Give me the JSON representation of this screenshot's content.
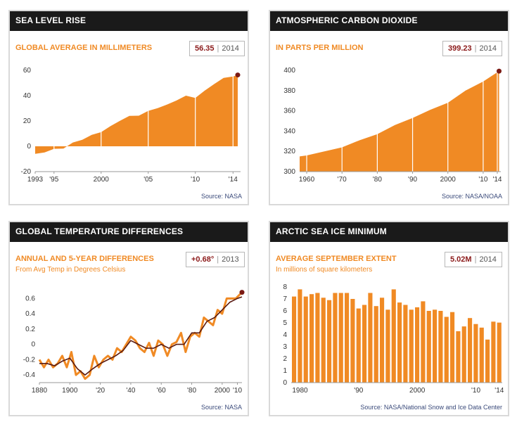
{
  "colors": {
    "orange": "#f08a24",
    "dark_red": "#7a1a14",
    "header_bg": "#1a1a1a",
    "line_dark": "#5a1a10"
  },
  "panels": {
    "sea": {
      "title": "SEA LEVEL RISE",
      "subtitle": "GLOBAL AVERAGE IN MILLIMETERS",
      "badge_value": "56.35",
      "badge_sep": "|",
      "badge_year": "2014",
      "source": "Source: NASA"
    },
    "co2": {
      "title": "ATMOSPHERIC CARBON DIOXIDE",
      "subtitle": "IN PARTS PER MILLION",
      "badge_value": "399.23",
      "badge_sep": "|",
      "badge_year": "2014",
      "source": "Source: NASA/NOAA"
    },
    "temp": {
      "title": "GLOBAL TEMPERATURE DIFFERENCES",
      "subtitle": "ANNUAL AND 5-YEAR DIFFERENCES",
      "subtitle2": "From Avg Temp in Degrees Celsius",
      "badge_value": "+0.68°",
      "badge_sep": "|",
      "badge_year": "2013",
      "source": "Source: NASA"
    },
    "ice": {
      "title": "ARCTIC SEA ICE MINIMUM",
      "subtitle": "AVERAGE SEPTEMBER EXTENT",
      "subtitle2": "In millions of square kilometers",
      "badge_value": "5.02M",
      "badge_sep": "|",
      "badge_year": "2014",
      "source": "Source: NASA/National Snow and Ice Data Center"
    }
  },
  "chart_data": [
    {
      "type": "area",
      "title": "SEA LEVEL RISE",
      "ylabel": "GLOBAL AVERAGE IN MILLIMETERS",
      "xlim": [
        1993,
        2014.8
      ],
      "ylim": [
        -20,
        60
      ],
      "yticks": [
        60,
        40,
        20,
        0,
        -20
      ],
      "xticks": [
        {
          "v": 1993,
          "label": "1993"
        },
        {
          "v": 1995,
          "label": "'95"
        },
        {
          "v": 2000,
          "label": "2000"
        },
        {
          "v": 2005,
          "label": "'05"
        },
        {
          "v": 2010,
          "label": "'10"
        },
        {
          "v": 2014,
          "label": "'14"
        }
      ],
      "x": [
        1993,
        1994,
        1995,
        1996,
        1997,
        1998,
        1999,
        2000,
        2001,
        2002,
        2003,
        2004,
        2005,
        2006,
        2007,
        2008,
        2009,
        2010,
        2011,
        2012,
        2013,
        2014,
        2014.5
      ],
      "y": [
        -6,
        -4,
        -2,
        -1,
        3,
        6,
        9,
        12,
        16,
        21,
        24,
        25,
        28,
        31,
        33,
        37,
        40,
        39,
        44,
        50,
        54,
        56,
        56.35
      ],
      "highlight": {
        "x": 2014.5,
        "y": 56.35
      }
    },
    {
      "type": "area",
      "title": "ATMOSPHERIC CARBON DIOXIDE",
      "ylabel": "IN PARTS PER MILLION",
      "xlim": [
        1958,
        2015
      ],
      "ylim": [
        300,
        400
      ],
      "yticks": [
        400,
        380,
        360,
        340,
        320,
        300
      ],
      "xticks": [
        {
          "v": 1960,
          "label": "1960"
        },
        {
          "v": 1970,
          "label": "'70"
        },
        {
          "v": 1980,
          "label": "'80"
        },
        {
          "v": 1990,
          "label": "'90"
        },
        {
          "v": 2000,
          "label": "2000"
        },
        {
          "v": 2010,
          "label": "'10"
        },
        {
          "v": 2014,
          "label": "'14"
        }
      ],
      "x": [
        1958,
        1960,
        1965,
        1970,
        1975,
        1980,
        1985,
        1990,
        1995,
        2000,
        2005,
        2010,
        2014.5
      ],
      "y": [
        315,
        317,
        320,
        325,
        331,
        338,
        346,
        354,
        361,
        369,
        380,
        390,
        399.23
      ],
      "highlight": {
        "x": 2014.5,
        "y": 399.23
      }
    },
    {
      "type": "line",
      "title": "GLOBAL TEMPERATURE DIFFERENCES",
      "ylabel": "From Avg Temp in Degrees Celsius",
      "xlim": [
        1880,
        2013
      ],
      "ylim": [
        -0.5,
        0.75
      ],
      "yticks": [
        0.6,
        0.4,
        0.2,
        0,
        -0.2,
        -0.4
      ],
      "xticks": [
        {
          "v": 1880,
          "label": "1880"
        },
        {
          "v": 1900,
          "label": "1900"
        },
        {
          "v": 1920,
          "label": "'20"
        },
        {
          "v": 1940,
          "label": "'40"
        },
        {
          "v": 1960,
          "label": "'60"
        },
        {
          "v": 1980,
          "label": "'80"
        },
        {
          "v": 2000,
          "label": "2000"
        },
        {
          "v": 2010,
          "label": "'10"
        }
      ],
      "series": [
        {
          "name": "Annual",
          "x": [
            1880,
            1883,
            1886,
            1889,
            1892,
            1895,
            1898,
            1901,
            1904,
            1907,
            1910,
            1913,
            1916,
            1919,
            1922,
            1925,
            1928,
            1931,
            1934,
            1937,
            1940,
            1943,
            1946,
            1949,
            1952,
            1955,
            1958,
            1961,
            1964,
            1967,
            1970,
            1973,
            1976,
            1979,
            1982,
            1985,
            1988,
            1991,
            1994,
            1997,
            2000,
            2003,
            2006,
            2009,
            2013
          ],
          "y": [
            -0.2,
            -0.3,
            -0.2,
            -0.3,
            -0.25,
            -0.15,
            -0.3,
            -0.1,
            -0.4,
            -0.35,
            -0.45,
            -0.4,
            -0.15,
            -0.3,
            -0.2,
            -0.15,
            -0.2,
            -0.05,
            -0.1,
            0.0,
            0.1,
            0.05,
            -0.05,
            -0.1,
            0.02,
            -0.15,
            0.05,
            0.0,
            -0.15,
            0.0,
            0.03,
            0.15,
            -0.1,
            0.1,
            0.15,
            0.1,
            0.35,
            0.3,
            0.25,
            0.45,
            0.4,
            0.6,
            0.6,
            0.6,
            0.68
          ]
        },
        {
          "name": "5-Year",
          "x": [
            1880,
            1885,
            1890,
            1895,
            1900,
            1905,
            1910,
            1915,
            1920,
            1925,
            1930,
            1935,
            1940,
            1945,
            1950,
            1955,
            1960,
            1965,
            1970,
            1975,
            1980,
            1985,
            1990,
            1995,
            2000,
            2005,
            2010,
            2013
          ],
          "y": [
            -0.25,
            -0.25,
            -0.28,
            -0.22,
            -0.18,
            -0.32,
            -0.4,
            -0.32,
            -0.25,
            -0.2,
            -0.15,
            -0.08,
            0.05,
            0.0,
            -0.05,
            -0.05,
            0.0,
            -0.05,
            0.0,
            0.0,
            0.15,
            0.15,
            0.3,
            0.35,
            0.45,
            0.55,
            0.6,
            0.62
          ]
        }
      ],
      "highlight": {
        "x": 2013,
        "y": 0.68
      }
    },
    {
      "type": "bar",
      "title": "ARCTIC SEA ICE MINIMUM",
      "ylabel": "In millions of square kilometers",
      "xlim": [
        1979,
        2015
      ],
      "ylim": [
        0,
        8
      ],
      "yticks": [
        8,
        7,
        6,
        5,
        4,
        3,
        2,
        1,
        0
      ],
      "xticks": [
        {
          "v": 1980,
          "label": "1980"
        },
        {
          "v": 1990,
          "label": "'90"
        },
        {
          "v": 2000,
          "label": "2000"
        },
        {
          "v": 2010,
          "label": "'10"
        },
        {
          "v": 2014,
          "label": "'14"
        }
      ],
      "categories": [
        1979,
        1980,
        1981,
        1982,
        1983,
        1984,
        1985,
        1986,
        1987,
        1988,
        1989,
        1990,
        1991,
        1992,
        1993,
        1994,
        1995,
        1996,
        1997,
        1998,
        1999,
        2000,
        2001,
        2002,
        2003,
        2004,
        2005,
        2006,
        2007,
        2008,
        2009,
        2010,
        2011,
        2012,
        2013,
        2014
      ],
      "values": [
        7.2,
        7.8,
        7.2,
        7.4,
        7.5,
        7.1,
        6.9,
        7.5,
        7.5,
        7.5,
        7.0,
        6.2,
        6.5,
        7.5,
        6.4,
        7.1,
        6.1,
        7.8,
        6.7,
        6.5,
        6.1,
        6.3,
        6.8,
        6.0,
        6.1,
        6.0,
        5.5,
        5.9,
        4.3,
        4.7,
        5.4,
        4.9,
        4.6,
        3.6,
        5.1,
        5.02
      ]
    }
  ]
}
